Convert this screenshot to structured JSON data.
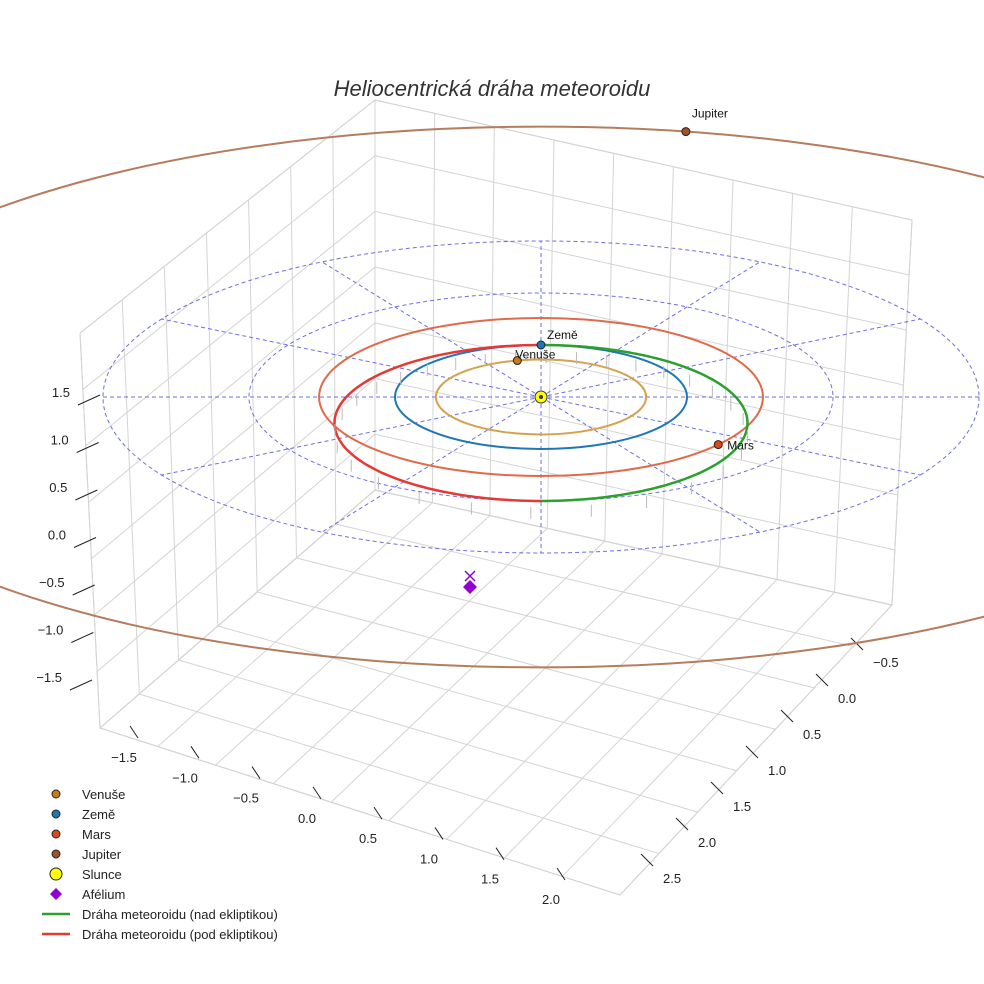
{
  "chart_data": {
    "type": "3d-line",
    "title": "Heliocentrická dráha meteoroidu",
    "axes": {
      "x": {
        "ticks": [
          -1.5,
          -1.0,
          -0.5,
          0.0,
          0.5,
          1.0,
          1.5,
          2.0
        ],
        "tick_labels": [
          "−1.5",
          "−1.0",
          "−0.5",
          "0.0",
          "0.5",
          "1.0",
          "1.5",
          "2.0"
        ]
      },
      "y": {
        "ticks": [
          -0.5,
          0.0,
          0.5,
          1.0,
          1.5,
          2.0,
          2.5
        ],
        "tick_labels": [
          "−0.5",
          "0.0",
          "0.5",
          "1.0",
          "1.5",
          "2.0",
          "2.5"
        ]
      },
      "z": {
        "ticks": [
          -1.5,
          -1.0,
          -0.5,
          0.0,
          0.5,
          1.0,
          1.5
        ],
        "tick_labels": [
          "−1.5",
          "−1.0",
          "−0.5",
          "0.0",
          "0.5",
          "1.0",
          "1.5"
        ]
      }
    },
    "reference_grid": {
      "ring_radii_au": [
        1,
        2,
        3
      ],
      "spokes": 12,
      "color": "#5555dd"
    },
    "orbits": [
      {
        "name": "Venuše",
        "radius_au": 0.72,
        "color": "#d4a24c"
      },
      {
        "name": "Země",
        "radius_au": 1.0,
        "color": "#1f77b4"
      },
      {
        "name": "Mars",
        "radius_au": 1.52,
        "color": "#e06a4a"
      },
      {
        "name": "Jupiter",
        "radius_au": 5.2,
        "color": "#b57c5e"
      }
    ],
    "planets": [
      {
        "name": "Venuše",
        "label": "Venuše",
        "angle_deg": 103,
        "color": "#c97c10"
      },
      {
        "name": "Země",
        "label": "Země",
        "angle_deg": 90,
        "color": "#1f77b4"
      },
      {
        "name": "Mars",
        "label": "Mars",
        "angle_deg": -37,
        "color": "#d94a1a"
      },
      {
        "name": "Jupiter",
        "label": "Jupiter",
        "angle_deg": 79,
        "color": "#a0522d"
      }
    ],
    "sun": {
      "name": "Slunce",
      "color": "#ffff00"
    },
    "meteoroid": {
      "perihelion_au": 1.0,
      "aphelion_au": 2.0,
      "perihelion_angle_deg": 90,
      "above_label": "Dráha meteoroidu (nad ekliptikou)",
      "below_label": "Dráha meteoroidu (pod ekliptikou)",
      "above_color": "#2ca02c",
      "below_color": "#e53935"
    },
    "aphelion_marker": {
      "name": "Afélium",
      "color": "#9400d3"
    },
    "legend": [
      {
        "label": "Venuše",
        "type": "dot",
        "color": "#c97c10"
      },
      {
        "label": "Země",
        "type": "dot",
        "color": "#1f77b4"
      },
      {
        "label": "Mars",
        "type": "dot",
        "color": "#d94a1a"
      },
      {
        "label": "Jupiter",
        "type": "dot",
        "color": "#a0522d"
      },
      {
        "label": "Slunce",
        "type": "sun",
        "color": "#ffff00"
      },
      {
        "label": "Afélium",
        "type": "diamond",
        "color": "#9400d3"
      },
      {
        "label": "Dráha meteoroidu (nad ekliptikou)",
        "type": "line",
        "color": "#2ca02c"
      },
      {
        "label": "Dráha meteoroidu (pod ekliptikou)",
        "type": "line",
        "color": "#e53935"
      }
    ]
  }
}
